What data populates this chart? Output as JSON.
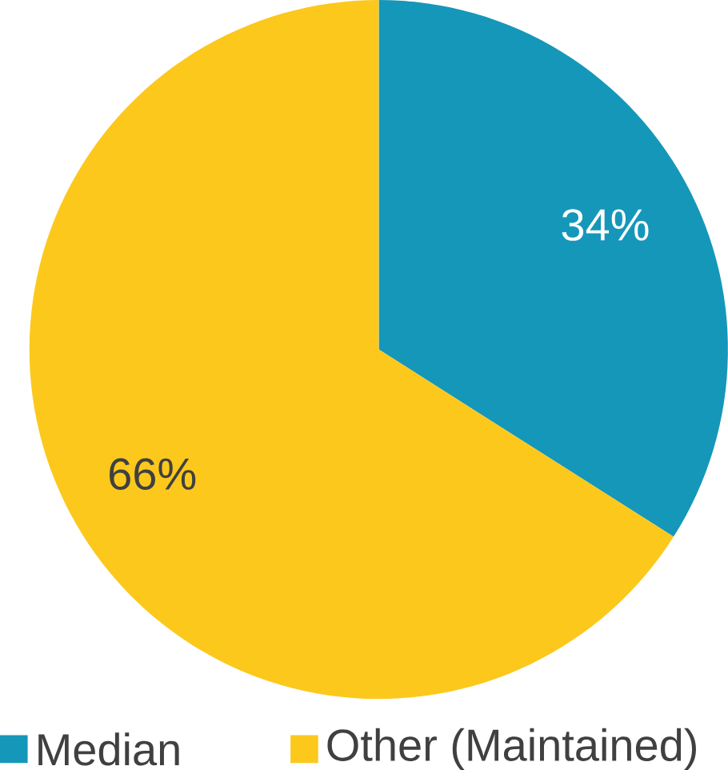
{
  "chart_data": {
    "type": "pie",
    "categories": [
      "Median",
      "Other (Maintained)"
    ],
    "values": [
      34,
      66
    ],
    "colors": [
      "#1597b9",
      "#fcc81c"
    ],
    "value_labels": [
      "34%",
      "66%"
    ],
    "legend": "bottom"
  }
}
